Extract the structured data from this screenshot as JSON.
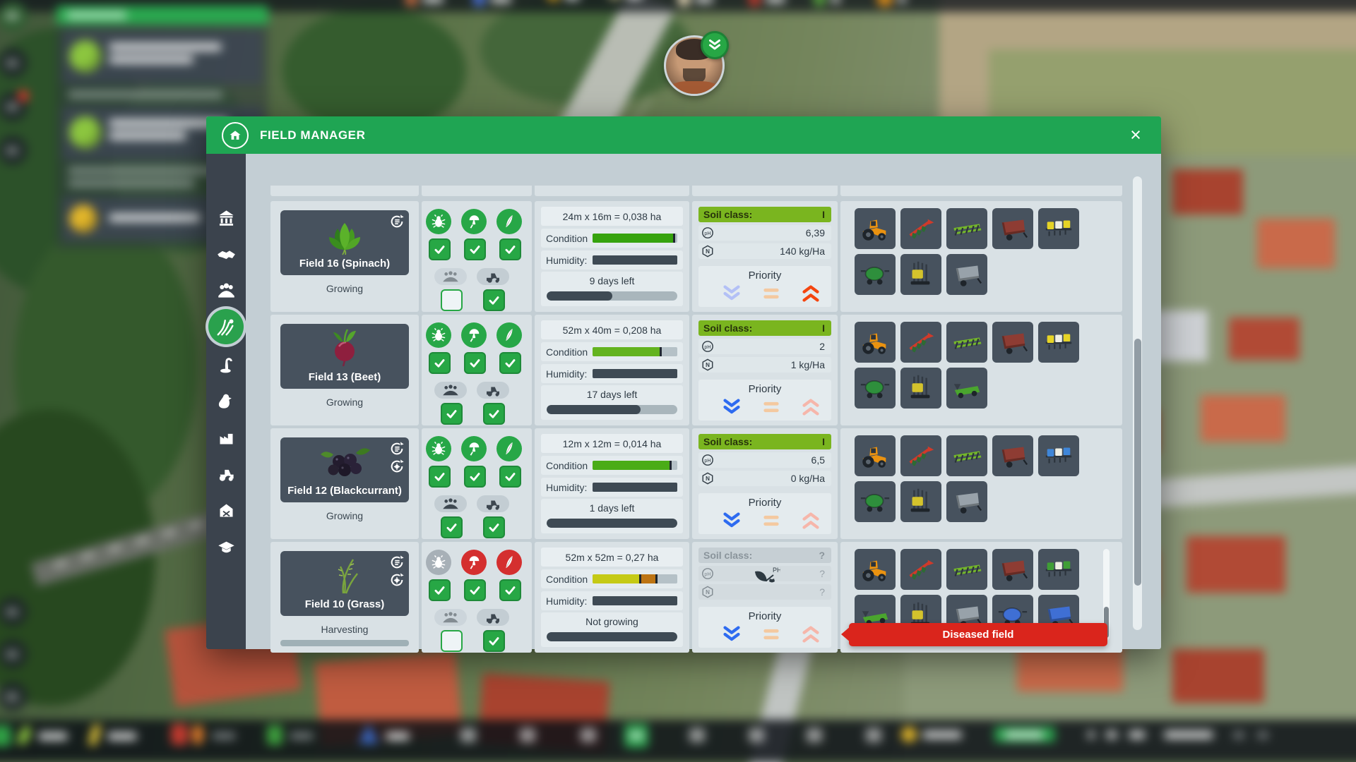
{
  "theme": {
    "accent_green": "#1fa553",
    "check_green": "#27a745",
    "danger_red": "#da251c",
    "slate": "#47525e",
    "soil_green": "#7ab51f"
  },
  "window": {
    "title": "FIELD MANAGER",
    "close_label": "×"
  },
  "labels": {
    "condition": "Condition",
    "humidity": "Humidity:",
    "soil_class": "Soil class:",
    "priority": "Priority",
    "ph": "pH",
    "n": "N"
  },
  "sidebar": {
    "active": "fields",
    "items": [
      "bank",
      "contracts",
      "staff",
      "fields",
      "plants",
      "animals",
      "production",
      "vehicles",
      "farm",
      "training"
    ]
  },
  "rows": [
    {
      "name": "Field 16 (Spinach)",
      "crop": "spinach",
      "status": "Growing",
      "size": "24m x 16m = 0,038 ha",
      "icon1": "shown",
      "icon2": "hidden",
      "harvest": "hidden",
      "treat": {
        "pest_color": "#27a747",
        "fungus_color": "#27a747",
        "weed_color": "#27a747",
        "pest_cb": "on",
        "fungus_cb": "on",
        "weed_cb": "on",
        "workers_cb": "off",
        "machines_cb": "on",
        "workers_dim": "dim",
        "machines_dim": "nodim"
      },
      "cond": {
        "w1": "96%",
        "c1": "#36a30e",
        "w2": "0%",
        "c2": "transparent",
        "l2": "0%",
        "m1": "95%",
        "m2": "-5%"
      },
      "hum": "100%",
      "growth": {
        "text": "9 days left",
        "w": "50%"
      },
      "soil": {
        "state": "known",
        "cls": "I",
        "ph": "6,39",
        "n": "140 kg/Ha"
      },
      "prio": "p-high",
      "gscroll": "hidden",
      "machines": [
        {
          "icon": "tractor",
          "color": "#ea9210"
        },
        {
          "icon": "plow",
          "color": "#d03a2a"
        },
        {
          "icon": "cult",
          "color": "#74b72a"
        },
        {
          "icon": "trailer",
          "color": "#8e3c33"
        },
        {
          "icon": "seeder",
          "color": "#e6d426"
        },
        {
          "icon": "sprayer",
          "color": "#2e8f3c"
        },
        {
          "icon": "forklift",
          "color": "#d4c32c"
        },
        {
          "icon": "trailer",
          "color": "#98a2aa"
        }
      ]
    },
    {
      "name": "Field 13 (Beet)",
      "crop": "beet",
      "status": "Growing",
      "size": "52m x 40m = 0,208 ha",
      "icon1": "hidden",
      "icon2": "hidden",
      "harvest": "hidden",
      "treat": {
        "pest_color": "#27a747",
        "fungus_color": "#27a747",
        "weed_color": "#27a747",
        "pest_cb": "on",
        "fungus_cb": "on",
        "weed_cb": "on",
        "workers_cb": "on",
        "machines_cb": "on",
        "workers_dim": "nodim",
        "machines_dim": "nodim"
      },
      "cond": {
        "w1": "80%",
        "c1": "#63b31f",
        "w2": "0%",
        "c2": "transparent",
        "l2": "0%",
        "m1": "79%",
        "m2": "-5%"
      },
      "hum": "100%",
      "growth": {
        "text": "17 days left",
        "w": "72%"
      },
      "soil": {
        "state": "known",
        "cls": "I",
        "ph": "2",
        "n": "1 kg/Ha"
      },
      "prio": "p-low",
      "gscroll": "hidden",
      "machines": [
        {
          "icon": "tractor",
          "color": "#ea9210"
        },
        {
          "icon": "plow",
          "color": "#d03a2a"
        },
        {
          "icon": "cult",
          "color": "#74b72a"
        },
        {
          "icon": "trailer",
          "color": "#8e3c33"
        },
        {
          "icon": "seeder",
          "color": "#e6d426"
        },
        {
          "icon": "sprayer",
          "color": "#2e8f3c"
        },
        {
          "icon": "forklift",
          "color": "#d4c32c"
        },
        {
          "icon": "mower",
          "color": "#4aa52e"
        }
      ]
    },
    {
      "name": "Field 12 (Blackcurrant)",
      "crop": "blackcurrant",
      "status": "Growing",
      "size": "12m x 12m = 0,014 ha",
      "icon1": "shown",
      "icon2": "shown",
      "harvest": "hidden",
      "treat": {
        "pest_color": "#27a747",
        "fungus_color": "#27a747",
        "weed_color": "#27a747",
        "pest_cb": "on",
        "fungus_cb": "on",
        "weed_cb": "on",
        "workers_cb": "on",
        "machines_cb": "on",
        "workers_dim": "nodim",
        "machines_dim": "nodim"
      },
      "cond": {
        "w1": "92%",
        "c1": "#4aac17",
        "w2": "0%",
        "c2": "transparent",
        "l2": "0%",
        "m1": "91%",
        "m2": "-5%"
      },
      "hum": "100%",
      "growth": {
        "text": "1 days left",
        "w": "100%"
      },
      "soil": {
        "state": "known",
        "cls": "I",
        "ph": "6,5",
        "n": "0 kg/Ha"
      },
      "prio": "p-low",
      "gscroll": "hidden",
      "machines": [
        {
          "icon": "tractor",
          "color": "#ea9210"
        },
        {
          "icon": "plow",
          "color": "#d03a2a"
        },
        {
          "icon": "cult",
          "color": "#74b72a"
        },
        {
          "icon": "trailer",
          "color": "#8e3c33"
        },
        {
          "icon": "seeder",
          "color": "#3f86d8"
        },
        {
          "icon": "sprayer",
          "color": "#2e8f3c"
        },
        {
          "icon": "forklift",
          "color": "#d4c32c"
        },
        {
          "icon": "trailer",
          "color": "#98a2aa"
        }
      ]
    },
    {
      "name": "Field 10 (Grass)",
      "crop": "grass",
      "status": "Harvesting",
      "size": "52m x 52m = 0,27 ha",
      "icon1": "shown",
      "icon2": "shown",
      "harvest": "shown",
      "treat": {
        "pest_color": "#a7b0b7",
        "fungus_color": "#d42f2f",
        "weed_color": "#d42f2f",
        "pest_cb": "on",
        "fungus_cb": "on",
        "weed_cb": "on",
        "workers_cb": "off",
        "machines_cb": "on",
        "workers_dim": "dim",
        "machines_dim": "nodim"
      },
      "cond": {
        "w1": "55%",
        "c1": "#c5ca15",
        "w2": "20%",
        "c2": "#bd7413",
        "l2": "55%",
        "m1": "55%",
        "m2": "74%"
      },
      "hum": "100%",
      "growth": {
        "text": "Not growing",
        "w": "100%"
      },
      "soil": {
        "state": "unknown",
        "cls": "?",
        "ph": "?",
        "n": "?"
      },
      "prio": "p-low",
      "gscroll": "shown",
      "banner_text": "Diseased field",
      "machines": [
        {
          "icon": "tractor",
          "color": "#ea9210"
        },
        {
          "icon": "plow",
          "color": "#d03a2a"
        },
        {
          "icon": "cult",
          "color": "#74b72a"
        },
        {
          "icon": "trailer",
          "color": "#8e3c33"
        },
        {
          "icon": "seeder",
          "color": "#3f9e35"
        },
        {
          "icon": "mower",
          "color": "#4aa52e"
        },
        {
          "icon": "forklift",
          "color": "#d4c32c"
        },
        {
          "icon": "trailer",
          "color": "#98a2aa"
        },
        {
          "icon": "sprayer",
          "color": "#3f6fd4"
        },
        {
          "icon": "trailer",
          "color": "#3f6fd4"
        }
      ]
    }
  ]
}
